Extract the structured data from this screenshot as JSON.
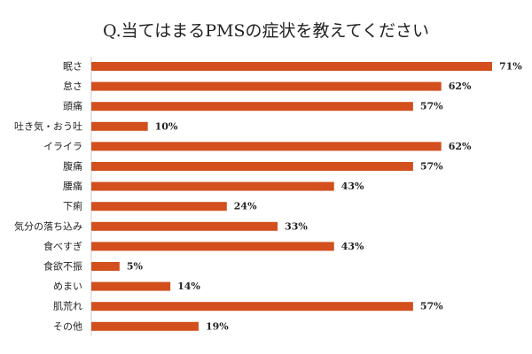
{
  "chart_data": {
    "type": "bar",
    "orientation": "horizontal",
    "title": "Q.当てはまるPMSの症状を教えてください",
    "categories": [
      "眠さ",
      "怠さ",
      "頭痛",
      "吐き気・おう吐",
      "イライラ",
      "腹痛",
      "腰痛",
      "下痢",
      "気分の落ち込み",
      "食べすぎ",
      "食欲不振",
      "めまい",
      "肌荒れ",
      "その他"
    ],
    "values": [
      71,
      62,
      57,
      10,
      62,
      57,
      43,
      24,
      33,
      43,
      5,
      14,
      57,
      19
    ],
    "value_labels": [
      "71%",
      "62%",
      "57%",
      "10%",
      "62%",
      "57%",
      "43%",
      "24%",
      "33%",
      "43%",
      "5%",
      "14%",
      "57%",
      "19%"
    ],
    "xlim": [
      0,
      71
    ],
    "grid": false,
    "legend": "none",
    "bar_color": "#d34f1e"
  }
}
